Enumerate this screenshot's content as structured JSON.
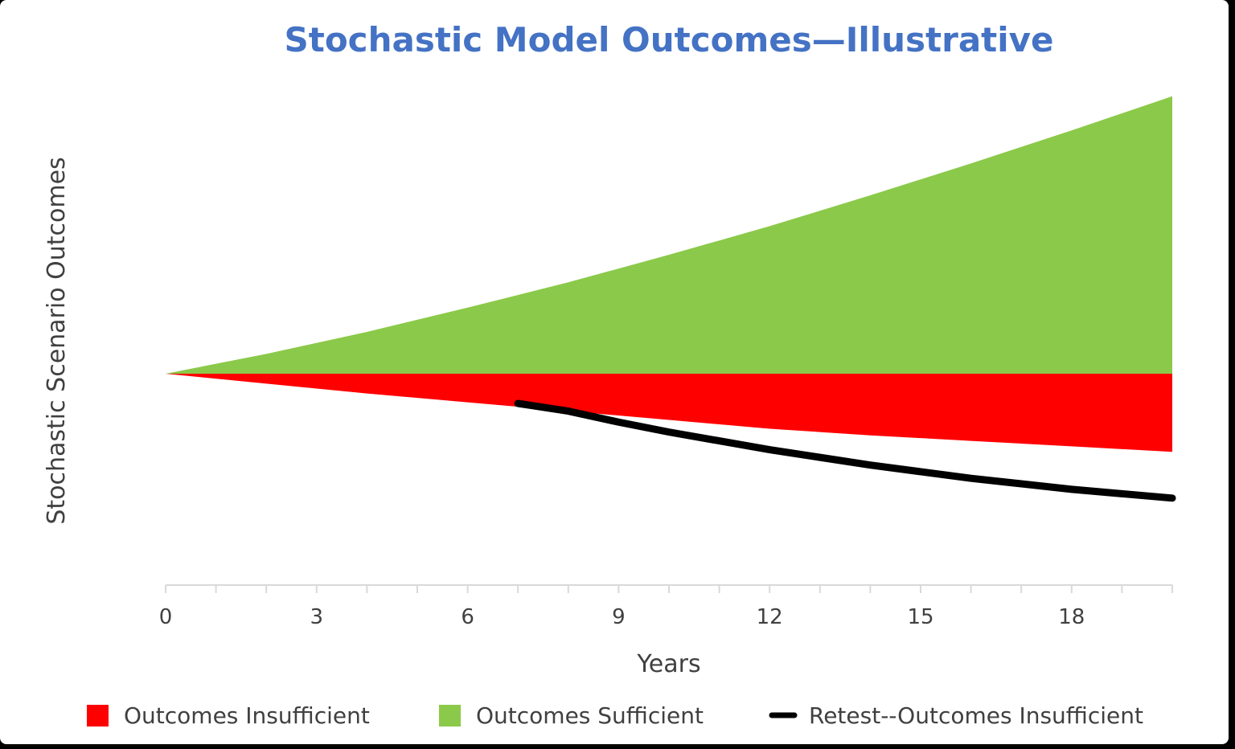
{
  "chart_data": {
    "type": "area",
    "title": "Stochastic Model Outcomes—Illustrative",
    "xlabel": "Years",
    "ylabel": "Stochastic Scenario Outcomes",
    "xlim": [
      0,
      20
    ],
    "x_ticks": [
      0,
      3,
      6,
      9,
      12,
      15,
      18
    ],
    "legend_position": "bottom",
    "grid": false,
    "series": [
      {
        "name": "Outcomes Insufficient",
        "type": "area",
        "color": "#FF0000",
        "x": [
          0,
          2,
          4,
          6,
          8,
          10,
          12,
          14,
          16,
          18,
          20
        ],
        "y": [
          0,
          -0.09,
          -0.18,
          -0.26,
          -0.34,
          -0.42,
          -0.5,
          -0.56,
          -0.61,
          -0.66,
          -0.71
        ]
      },
      {
        "name": "Outcomes Sufficient",
        "type": "area",
        "color": "#8BC94A",
        "x": [
          0,
          2,
          4,
          6,
          8,
          10,
          12,
          14,
          16,
          18,
          20
        ],
        "y": [
          0,
          0.18,
          0.38,
          0.6,
          0.83,
          1.08,
          1.34,
          1.62,
          1.91,
          2.21,
          2.52
        ]
      },
      {
        "name": "Retest--Outcomes Insufficient",
        "type": "line",
        "color": "#000000",
        "x": [
          7,
          8,
          9,
          10,
          11,
          12,
          13,
          14,
          15,
          16,
          17,
          18,
          19,
          20
        ],
        "y": [
          -0.27,
          -0.34,
          -0.44,
          -0.53,
          -0.61,
          -0.69,
          -0.76,
          -0.83,
          -0.89,
          -0.95,
          -1.0,
          -1.05,
          -1.09,
          -1.13
        ]
      }
    ]
  }
}
